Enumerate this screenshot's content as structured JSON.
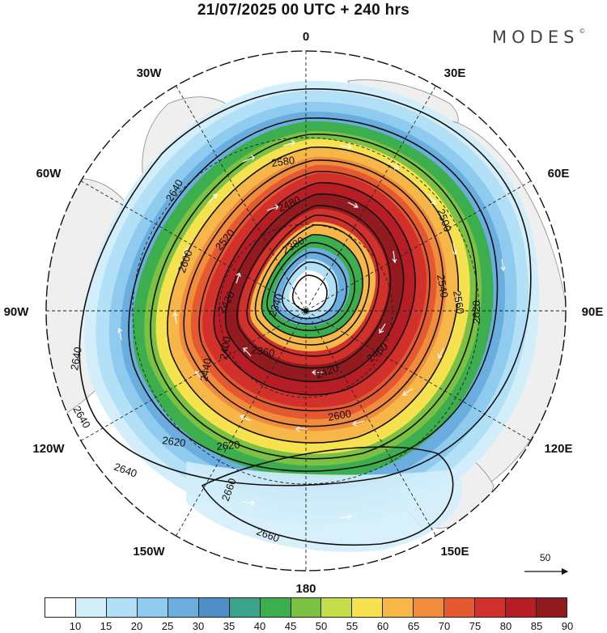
{
  "title": "21/07/2025  00 UTC  + 240 hrs",
  "brand": "MODES",
  "brand_mark": "©",
  "lon_labels": [
    "0",
    "30E",
    "60E",
    "90E",
    "120E",
    "150E",
    "180",
    "150W",
    "120W",
    "90W",
    "60W",
    "30W"
  ],
  "vector_ref": {
    "value": "50"
  },
  "colorbar": {
    "ticks": [
      "10",
      "15",
      "20",
      "25",
      "30",
      "35",
      "40",
      "45",
      "50",
      "55",
      "60",
      "65",
      "70",
      "75",
      "80",
      "85",
      "90"
    ],
    "colors": [
      "#ffffff",
      "#d3eefb",
      "#b2e0f6",
      "#8fcbee",
      "#6aaddf",
      "#4d8fc6",
      "#3ba38a",
      "#3dae4e",
      "#7bc142",
      "#c6dc48",
      "#f6e24f",
      "#f6b648",
      "#f08c3b",
      "#e4592f",
      "#d2302a",
      "#b71d25",
      "#931a1e"
    ]
  },
  "contour_labels": [
    "2660",
    "2660",
    "2640",
    "2640",
    "2640",
    "2640",
    "2620",
    "2620",
    "2620",
    "2600",
    "2600",
    "2580",
    "2560",
    "2540",
    "2520",
    "2500",
    "2480",
    "2460",
    "2440",
    "2420",
    "2420",
    "2400",
    "2380",
    "2360",
    "2340"
  ]
}
